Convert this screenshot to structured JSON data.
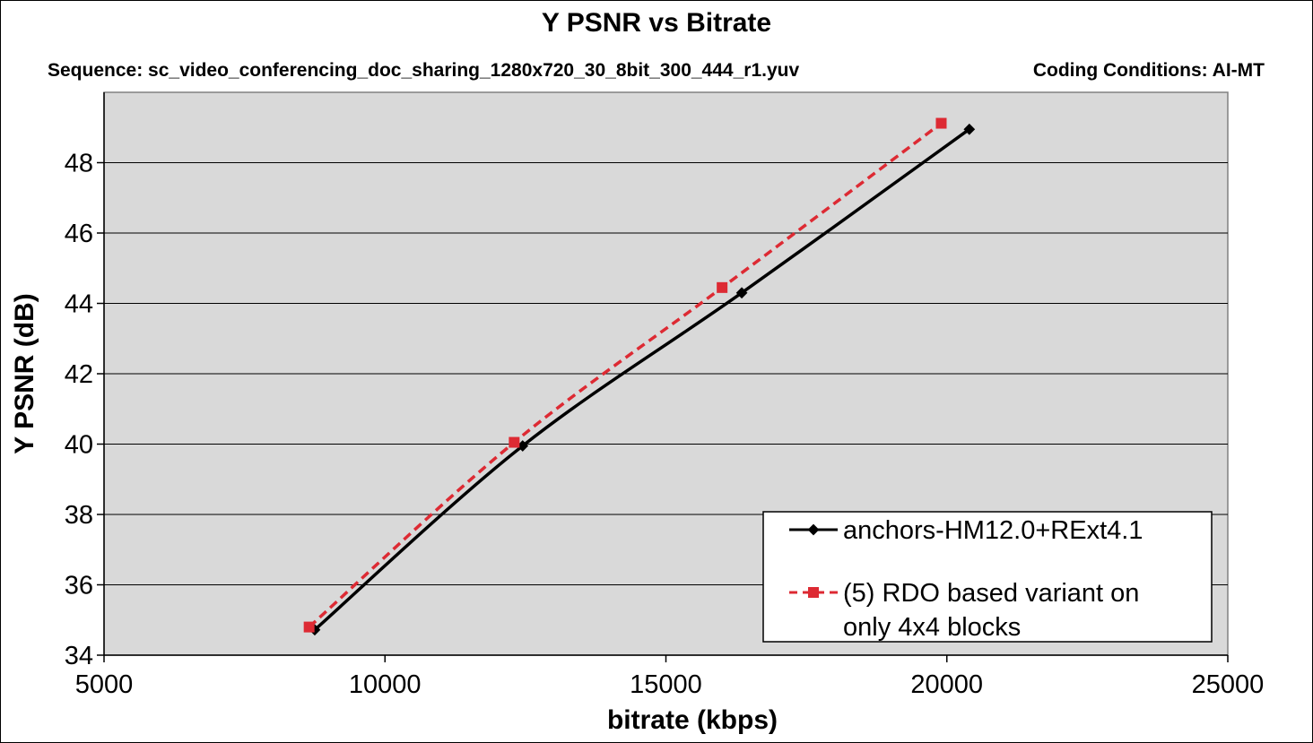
{
  "chart_data": {
    "type": "line",
    "title": "Y PSNR  vs Bitrate",
    "subtitle_left": "Sequence: sc_video_conferencing_doc_sharing_1280x720_30_8bit_300_444_r1.yuv",
    "subtitle_right": "Coding Conditions: AI-MT",
    "xlabel": "bitrate (kbps)",
    "ylabel": "Y PSNR (dB)",
    "xlim": [
      5000,
      25000
    ],
    "ylim": [
      34,
      50
    ],
    "xticks": [
      5000,
      10000,
      15000,
      20000,
      25000
    ],
    "yticks": [
      34,
      36,
      38,
      40,
      42,
      44,
      46,
      48
    ],
    "grid": "horizontal",
    "legend_position": "bottom-right",
    "series": [
      {
        "name": "anchors-HM12.0+RExt4.1",
        "color": "#000000",
        "dash": "solid",
        "marker": "diamond",
        "x": [
          8750,
          12450,
          16350,
          20400
        ],
        "y": [
          34.72,
          39.95,
          44.3,
          48.95
        ]
      },
      {
        "name": "(5) RDO based variant on only 4x4 blocks",
        "legend_lines": [
          "(5) RDO based variant on",
          "only 4x4 blocks"
        ],
        "color": "#dd2a33",
        "dash": "dashed",
        "marker": "square",
        "x": [
          8650,
          12300,
          16000,
          19900
        ],
        "y": [
          34.8,
          40.05,
          44.45,
          49.12
        ]
      }
    ]
  }
}
